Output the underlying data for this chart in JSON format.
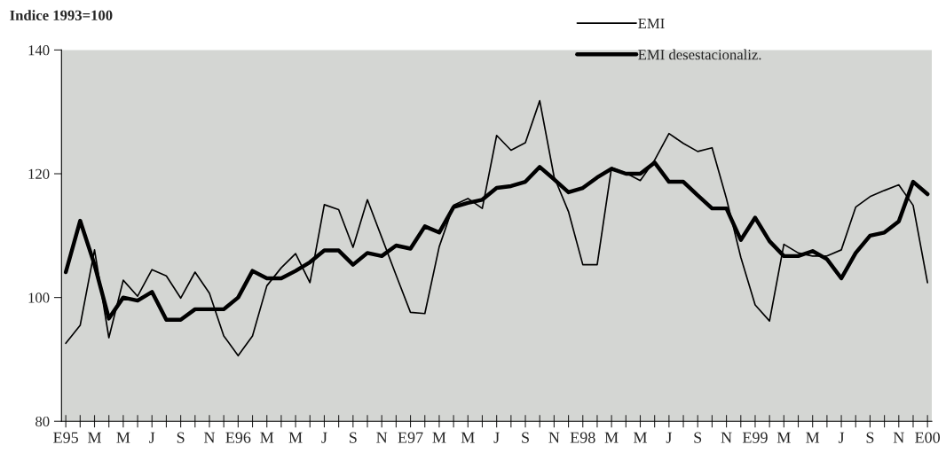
{
  "chart_data": {
    "type": "line",
    "title": "Indice 1993=100",
    "categories": [
      "E95",
      null,
      "M",
      null,
      "M",
      null,
      "J",
      null,
      "S",
      null,
      "N",
      null,
      "E96",
      null,
      "M",
      null,
      "M",
      null,
      "J",
      null,
      "S",
      null,
      "N",
      null,
      "E97",
      null,
      "M",
      null,
      "M",
      null,
      "J",
      null,
      "S",
      null,
      "N",
      null,
      "E98",
      null,
      "M",
      null,
      "M",
      null,
      "J",
      null,
      "S",
      null,
      "N",
      null,
      "E99",
      null,
      "M",
      null,
      "M",
      null,
      "J",
      null,
      "S",
      null,
      "N",
      null,
      "E00"
    ],
    "series": [
      {
        "name": "EMI",
        "color": "#000000",
        "values": [
          92.6,
          95.5,
          107.7,
          93.5,
          102.8,
          100.2,
          104.5,
          103.5,
          99.9,
          104.1,
          100.7,
          93.8,
          90.6,
          93.8,
          101.9,
          104.8,
          107.1,
          102.4,
          115.0,
          114.2,
          108.1,
          115.8,
          109.7,
          103.6,
          97.6,
          97.4,
          108.2,
          114.9,
          116.0,
          114.4,
          126.2,
          123.8,
          125.0,
          131.8,
          119.5,
          113.9,
          105.3,
          105.3,
          121.0,
          120.1,
          118.9,
          122.2,
          126.5,
          124.9,
          123.6,
          124.2,
          116.0,
          106.5,
          98.8,
          96.2,
          108.6,
          107.2,
          106.7,
          106.7,
          107.7,
          114.6,
          116.3,
          117.3,
          118.2,
          114.9,
          102.4
        ]
      },
      {
        "name": "EMI desestacionaliz.",
        "color": "#000000",
        "values": [
          104.1,
          112.4,
          105.3,
          96.6,
          100.0,
          99.5,
          100.9,
          96.4,
          96.4,
          98.1,
          98.1,
          98.1,
          100.0,
          104.3,
          103.1,
          103.1,
          104.3,
          105.7,
          107.6,
          107.6,
          105.3,
          107.2,
          106.7,
          108.4,
          107.9,
          111.5,
          110.5,
          114.6,
          115.3,
          115.8,
          117.7,
          118.0,
          118.7,
          121.1,
          119.1,
          117.0,
          117.7,
          119.4,
          120.8,
          120.0,
          120.0,
          121.8,
          118.7,
          118.7,
          116.5,
          114.4,
          114.4,
          109.3,
          112.9,
          109.1,
          106.7,
          106.7,
          107.5,
          106.2,
          103.1,
          107.2,
          110.0,
          110.5,
          112.3,
          118.7,
          116.7
        ]
      }
    ],
    "ylim": [
      80,
      140
    ],
    "yticks": [
      80,
      100,
      120,
      140
    ],
    "grid": false,
    "legend": "top right"
  }
}
